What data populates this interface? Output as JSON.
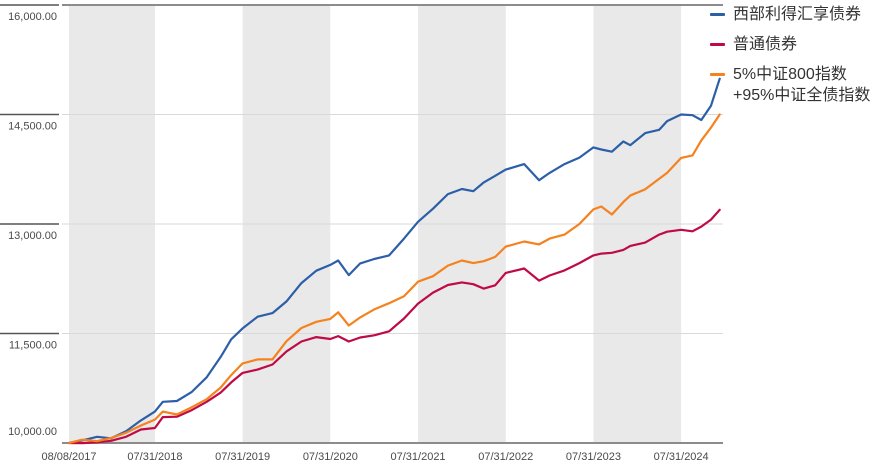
{
  "chart_data": {
    "type": "line",
    "title": "",
    "xlabel": "",
    "ylabel": "",
    "ylim": [
      10000,
      16000
    ],
    "grid": "horizontal",
    "legend_position": "top-right",
    "plot_bg": "#ffffff",
    "band_color": "#e9e9e9",
    "gridline_color": "#d9d9d9",
    "axis_color": "#8c8c8c",
    "tick_color": "#555555",
    "label_color": "#4a4a4a",
    "y_ticks": [
      {
        "label": "16,000.00",
        "value": 16000
      },
      {
        "label": "14,500.00",
        "value": 14500
      },
      {
        "label": "13,000.00",
        "value": 13000
      },
      {
        "label": "11,500.00",
        "value": 11500
      },
      {
        "label": "10,000.00",
        "value": 10000
      }
    ],
    "x_tick_labels": [
      "08/08/2017",
      "07/31/2018",
      "07/31/2019",
      "07/31/2020",
      "07/31/2021",
      "07/31/2022",
      "07/31/2023",
      "07/31/2024"
    ],
    "x_tick_years": [
      2017.6,
      2018.58,
      2019.58,
      2020.58,
      2021.58,
      2022.58,
      2023.58,
      2024.58
    ],
    "x": [
      2017.6,
      2017.75,
      2017.92,
      2018.08,
      2018.25,
      2018.42,
      2018.58,
      2018.67,
      2018.83,
      2019.0,
      2019.17,
      2019.33,
      2019.45,
      2019.58,
      2019.75,
      2019.92,
      2020.08,
      2020.25,
      2020.42,
      2020.58,
      2020.67,
      2020.79,
      2020.92,
      2021.08,
      2021.25,
      2021.42,
      2021.58,
      2021.75,
      2021.92,
      2022.08,
      2022.21,
      2022.33,
      2022.46,
      2022.58,
      2022.79,
      2022.96,
      2023.08,
      2023.25,
      2023.42,
      2023.58,
      2023.67,
      2023.79,
      2023.92,
      2024.0,
      2024.17,
      2024.33,
      2024.42,
      2024.58,
      2024.71,
      2024.81,
      2024.92,
      2025.02
    ],
    "series": [
      {
        "name": "西部利得汇享债券",
        "color": "#2c5fa7",
        "values": [
          10000,
          10035,
          10085,
          10065,
          10160,
          10310,
          10430,
          10565,
          10575,
          10700,
          10900,
          11180,
          11420,
          11570,
          11730,
          11780,
          11940,
          12190,
          12360,
          12440,
          12500,
          12300,
          12460,
          12520,
          12570,
          12800,
          13030,
          13210,
          13410,
          13480,
          13450,
          13570,
          13660,
          13745,
          13820,
          13600,
          13700,
          13820,
          13910,
          14050,
          14020,
          13990,
          14130,
          14080,
          14245,
          14290,
          14410,
          14500,
          14490,
          14425,
          14620,
          14990
        ]
      },
      {
        "name": "普通债券",
        "color": "#bf0a45",
        "values": [
          10000,
          9998,
          10010,
          10030,
          10085,
          10185,
          10205,
          10355,
          10360,
          10450,
          10565,
          10690,
          10830,
          10960,
          11005,
          11075,
          11255,
          11390,
          11450,
          11425,
          11465,
          11390,
          11445,
          11475,
          11530,
          11705,
          11910,
          12060,
          12165,
          12200,
          12175,
          12115,
          12160,
          12330,
          12390,
          12225,
          12295,
          12365,
          12465,
          12570,
          12595,
          12605,
          12645,
          12700,
          12745,
          12855,
          12895,
          12920,
          12900,
          12965,
          13060,
          13195
        ]
      },
      {
        "name": "5%中证800指数+95%中证全债指数",
        "color": "#f5821e",
        "values": [
          10000,
          10045,
          10025,
          10070,
          10140,
          10240,
          10320,
          10430,
          10390,
          10490,
          10600,
          10760,
          10930,
          11090,
          11145,
          11145,
          11395,
          11575,
          11660,
          11700,
          11790,
          11610,
          11720,
          11830,
          11915,
          12010,
          12210,
          12285,
          12430,
          12500,
          12465,
          12490,
          12550,
          12690,
          12760,
          12720,
          12800,
          12855,
          13000,
          13200,
          13240,
          13130,
          13300,
          13390,
          13475,
          13620,
          13700,
          13905,
          13940,
          14145,
          14320,
          14500
        ]
      }
    ]
  },
  "legend": {
    "items": [
      {
        "label": "西部利得汇享债券",
        "label2": "",
        "color": "#2c5fa7"
      },
      {
        "label": "普通债券",
        "label2": "",
        "color": "#bf0a45"
      },
      {
        "label": "5%中证800指数",
        "label2": "+95%中证全债指数",
        "color": "#f5821e"
      }
    ]
  }
}
